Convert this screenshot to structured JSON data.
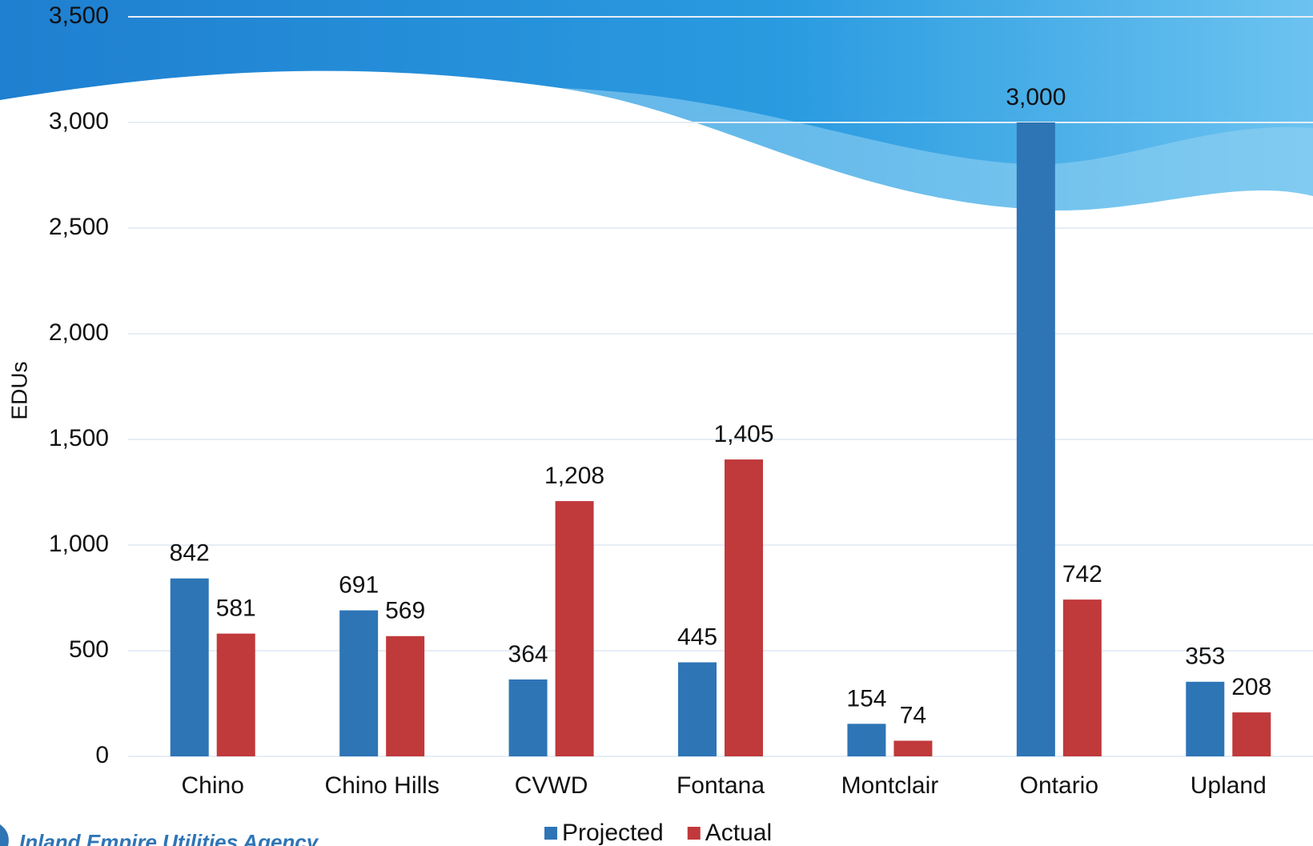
{
  "chart_data": {
    "type": "bar",
    "y_label": "EDUs",
    "categories": [
      "Chino",
      "Chino Hills",
      "CVWD",
      "Fontana",
      "Montclair",
      "Ontario",
      "Upland"
    ],
    "series": [
      {
        "name": "Projected",
        "color": "#2e75b6",
        "values": [
          842,
          691,
          364,
          445,
          154,
          3000,
          353
        ],
        "value_labels": [
          "842",
          "691",
          "364",
          "445",
          "154",
          "3,000",
          "353"
        ]
      },
      {
        "name": "Actual",
        "color": "#c0393b",
        "values": [
          581,
          569,
          1208,
          1405,
          74,
          742,
          208
        ],
        "value_labels": [
          "581",
          "569",
          "1,208",
          "1,405",
          "74",
          "742",
          "208"
        ]
      }
    ],
    "ylim": [
      0,
      3500
    ],
    "yticks": [
      0,
      500,
      {
        "value": 1000,
        "label": "1,000"
      },
      {
        "value": 1500,
        "label": "1,500"
      },
      {
        "value": 2000,
        "label": "2,000"
      },
      {
        "value": 2500,
        "label": "2,500"
      },
      {
        "value": 3000,
        "label": "3,000"
      },
      {
        "value": 3500,
        "label": "3,500"
      }
    ],
    "grid": true,
    "legend": "bottom",
    "footer": "Inland Empire Utilities Agency"
  }
}
